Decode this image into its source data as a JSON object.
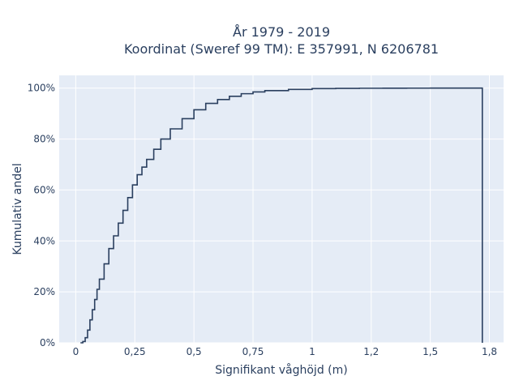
{
  "chart_data": {
    "type": "line",
    "subtype": "ecdf-step",
    "title_line1": "År 1979 - 2019",
    "title_line2": "Koordinat (Sweref 99 TM): E 357991, N 6206781",
    "xlabel": "Signifikant våghöjd (m)",
    "ylabel": "Kumulativ andel",
    "xlim": [
      -0.07,
      1.81
    ],
    "ylim": [
      0,
      1.05
    ],
    "x_ticks": [
      {
        "value": 0,
        "label": "0"
      },
      {
        "value": 0.25,
        "label": "0,25"
      },
      {
        "value": 0.5,
        "label": "0,5"
      },
      {
        "value": 0.75,
        "label": "0,75"
      },
      {
        "value": 1,
        "label": "1"
      },
      {
        "value": 1.25,
        "label": "1,2"
      },
      {
        "value": 1.5,
        "label": "1,5"
      },
      {
        "value": 1.75,
        "label": "1,8"
      }
    ],
    "y_ticks": [
      {
        "value": 0,
        "label": "0%"
      },
      {
        "value": 0.2,
        "label": "20%"
      },
      {
        "value": 0.4,
        "label": "40%"
      },
      {
        "value": 0.6,
        "label": "60%"
      },
      {
        "value": 0.8,
        "label": "80%"
      },
      {
        "value": 1,
        "label": "100%"
      }
    ],
    "grid": true,
    "legend": "none",
    "series": [
      {
        "x": [
          0.02,
          0.03,
          0.04,
          0.05,
          0.06,
          0.07,
          0.08,
          0.09,
          0.1,
          0.12,
          0.14,
          0.16,
          0.18,
          0.2,
          0.22,
          0.24,
          0.26,
          0.28,
          0.3,
          0.33,
          0.36,
          0.4,
          0.45,
          0.5,
          0.55,
          0.6,
          0.65,
          0.7,
          0.75,
          0.8,
          0.9,
          1.0,
          1.1,
          1.2,
          1.3,
          1.4,
          1.5,
          1.6,
          1.68,
          1.72
        ],
        "y": [
          0,
          0.005,
          0.02,
          0.05,
          0.09,
          0.13,
          0.17,
          0.21,
          0.25,
          0.31,
          0.37,
          0.42,
          0.47,
          0.52,
          0.57,
          0.62,
          0.66,
          0.69,
          0.72,
          0.76,
          0.8,
          0.84,
          0.88,
          0.915,
          0.94,
          0.955,
          0.968,
          0.978,
          0.985,
          0.99,
          0.995,
          0.998,
          0.999,
          0.9995,
          0.9998,
          0.9999,
          1.0,
          1.0,
          1.0,
          1.0
        ],
        "drop_to_zero_at_end": true
      }
    ],
    "colors": {
      "line": "#2a3f5f",
      "plot_bg": "#e5ecf6",
      "grid": "#ffffff",
      "paper_bg": "#ffffff"
    }
  }
}
